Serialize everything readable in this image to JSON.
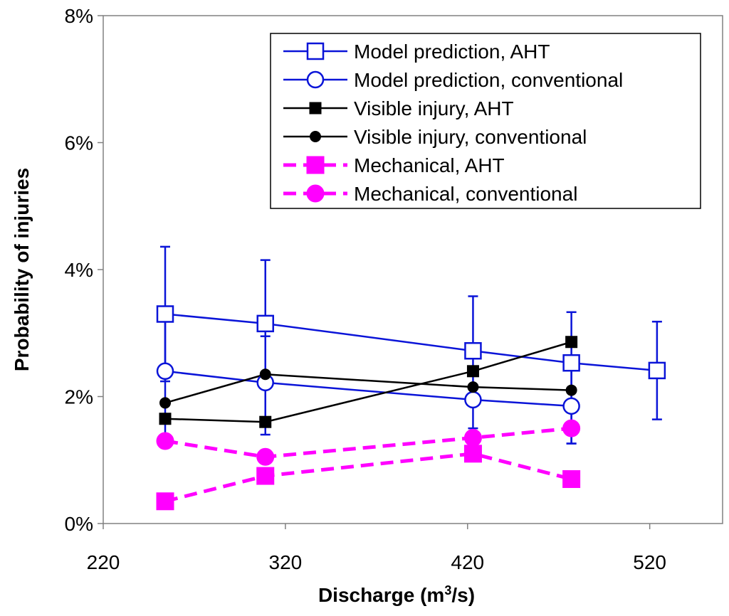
{
  "chart_data": {
    "type": "line",
    "title": "",
    "xlabel": "Discharge (m",
    "xlabel_sup": "3",
    "xlabel_suffix": "/s)",
    "ylabel": "Probability of injuries",
    "xlim": [
      220,
      560
    ],
    "ylim": [
      0,
      8
    ],
    "x_ticks": [
      220,
      320,
      420,
      520
    ],
    "x_tick_labels": [
      "220",
      "320",
      "420",
      "520"
    ],
    "y_ticks": [
      0,
      2,
      4,
      6,
      8
    ],
    "y_tick_labels": [
      "0%",
      "2%",
      "4%",
      "6%",
      "8%"
    ],
    "grid": false,
    "legend_position": "top-right",
    "colors": {
      "blue": "#0a14d8",
      "black": "#000000",
      "magenta": "#ff00ff"
    },
    "series": [
      {
        "name": "Model prediction, AHT",
        "color": "#0a14d8",
        "marker": "square-open",
        "dashed": false,
        "x": [
          254,
          309,
          423,
          477,
          524
        ],
        "y": [
          3.3,
          3.15,
          2.72,
          2.53,
          2.41
        ],
        "err_low": [
          2.24,
          1.4,
          2.62,
          1.26,
          1.64
        ],
        "err_high": [
          4.36,
          4.15,
          3.58,
          3.33,
          3.18
        ]
      },
      {
        "name": "Model prediction, conventional",
        "color": "#0a14d8",
        "marker": "circle-open",
        "dashed": false,
        "x": [
          254,
          309,
          423,
          477
        ],
        "y": [
          2.4,
          2.22,
          1.95,
          1.85
        ],
        "err_low": [
          1.4,
          1.6,
          1.5,
          1.26
        ],
        "err_high": [
          3.18,
          2.95,
          2.6,
          2.52
        ]
      },
      {
        "name": "Visible injury, AHT",
        "color": "#000000",
        "marker": "square-filled",
        "dashed": false,
        "x": [
          254,
          309,
          423,
          477
        ],
        "y": [
          1.65,
          1.6,
          2.4,
          2.86
        ]
      },
      {
        "name": "Visible injury, conventional",
        "color": "#000000",
        "marker": "circle-filled",
        "dashed": false,
        "x": [
          254,
          309,
          423,
          477
        ],
        "y": [
          1.9,
          2.35,
          2.15,
          2.1
        ]
      },
      {
        "name": "Mechanical, AHT",
        "color": "#ff00ff",
        "marker": "square-filled",
        "dashed": true,
        "x": [
          254,
          309,
          423,
          477
        ],
        "y": [
          0.35,
          0.75,
          1.1,
          0.7
        ]
      },
      {
        "name": "Mechanical, conventional",
        "color": "#ff00ff",
        "marker": "circle-filled",
        "dashed": true,
        "x": [
          254,
          309,
          423,
          477
        ],
        "y": [
          1.3,
          1.05,
          1.35,
          1.5
        ]
      }
    ]
  }
}
